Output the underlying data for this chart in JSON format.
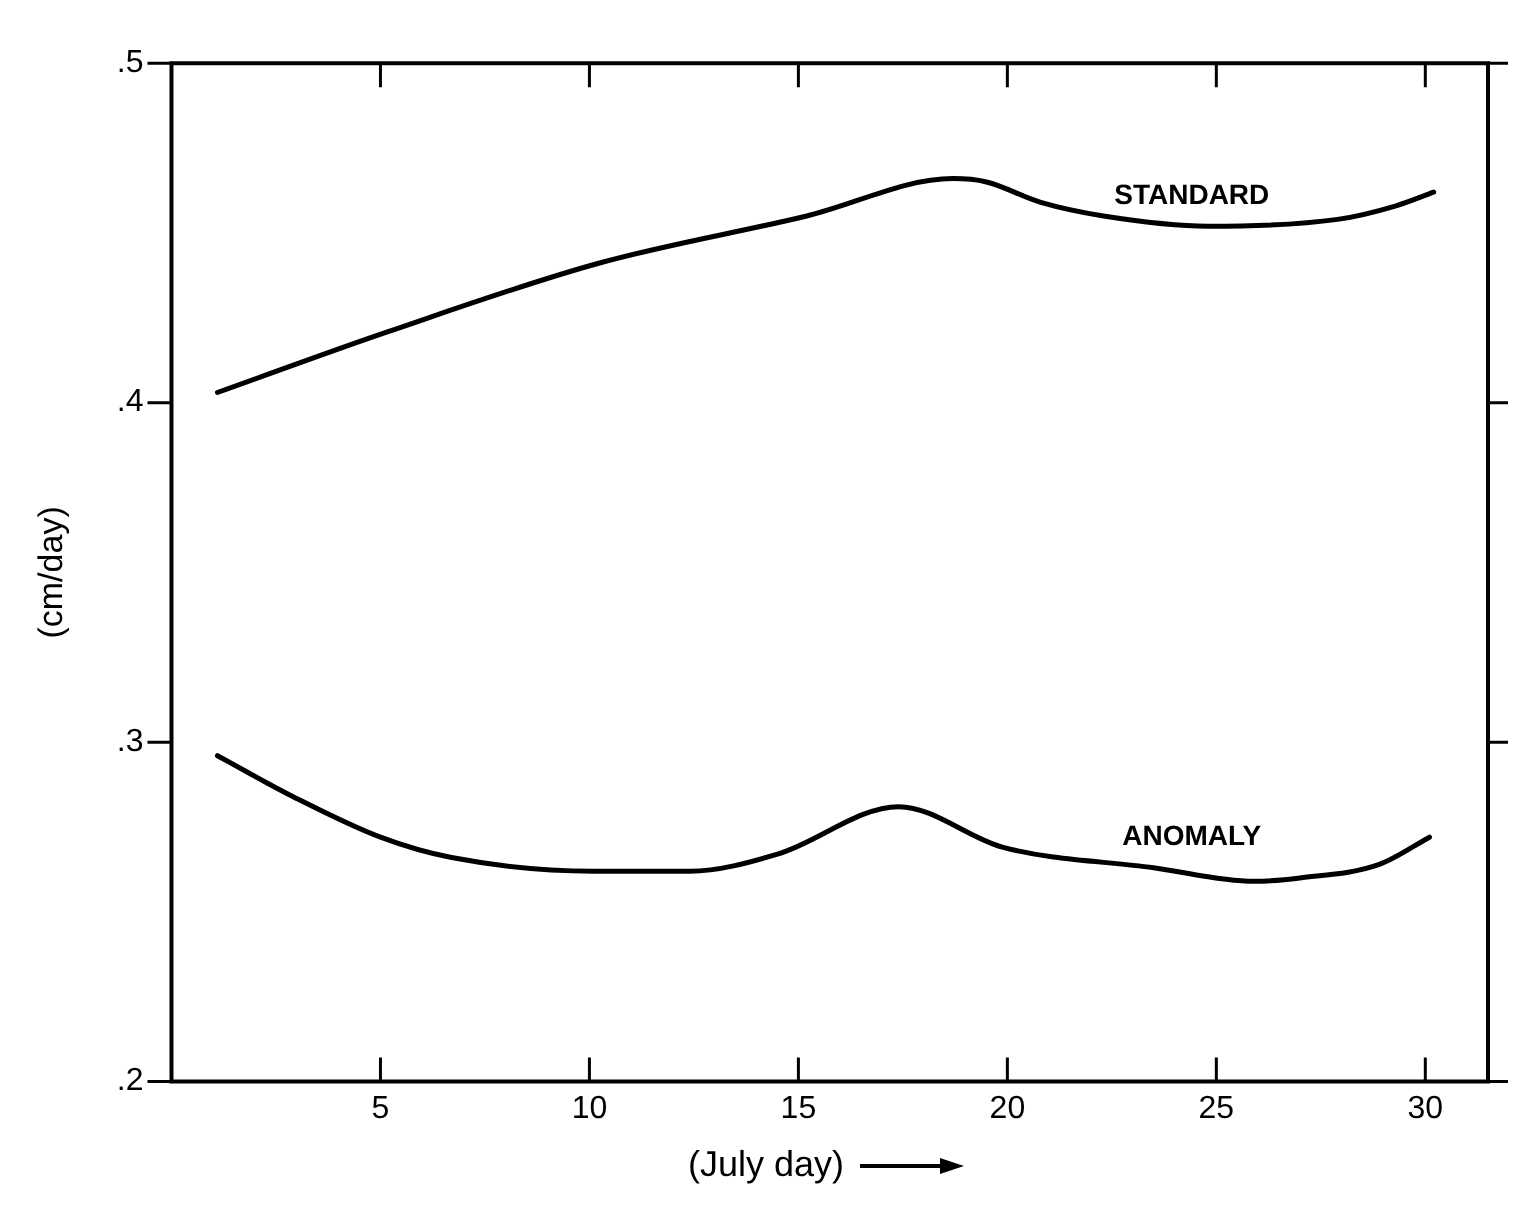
{
  "chart_data": {
    "type": "line",
    "xlabel": "(July day)",
    "ylabel": "(cm/day)",
    "xlim": [
      0,
      31.5
    ],
    "xticks": [
      5,
      10,
      15,
      20,
      25,
      30
    ],
    "ylim": [
      0.2,
      0.5
    ],
    "yticks": [
      {
        "value": 0.2,
        "label": ".2"
      },
      {
        "value": 0.3,
        "label": ".3"
      },
      {
        "value": 0.4,
        "label": ".4"
      },
      {
        "value": 0.5,
        "label": ".5"
      }
    ],
    "marker": "none",
    "line_style": "solid",
    "legend": false,
    "series": [
      {
        "name": "STANDARD",
        "color": "#000000",
        "x": [
          1.1,
          5.2,
          10.2,
          15.2,
          18.7,
          19.5,
          20.8,
          22.3,
          24.8,
          27.9,
          29.3,
          30.2
        ],
        "values": [
          0.403,
          0.421,
          0.441,
          0.455,
          0.466,
          0.465,
          0.459,
          0.455,
          0.452,
          0.454,
          0.458,
          0.462
        ]
      },
      {
        "name": "ANOMALY",
        "color": "#000000",
        "x": [
          1.1,
          2.9,
          5,
          6.7,
          10.1,
          12.4,
          14.5,
          17.4,
          19.9,
          23.5,
          25.9,
          27,
          28.9,
          30.1
        ],
        "values": [
          0.296,
          0.284,
          0.272,
          0.266,
          0.262,
          0.262,
          0.267,
          0.281,
          0.269,
          0.263,
          0.259,
          0.26,
          0.264,
          0.272
        ]
      }
    ]
  }
}
